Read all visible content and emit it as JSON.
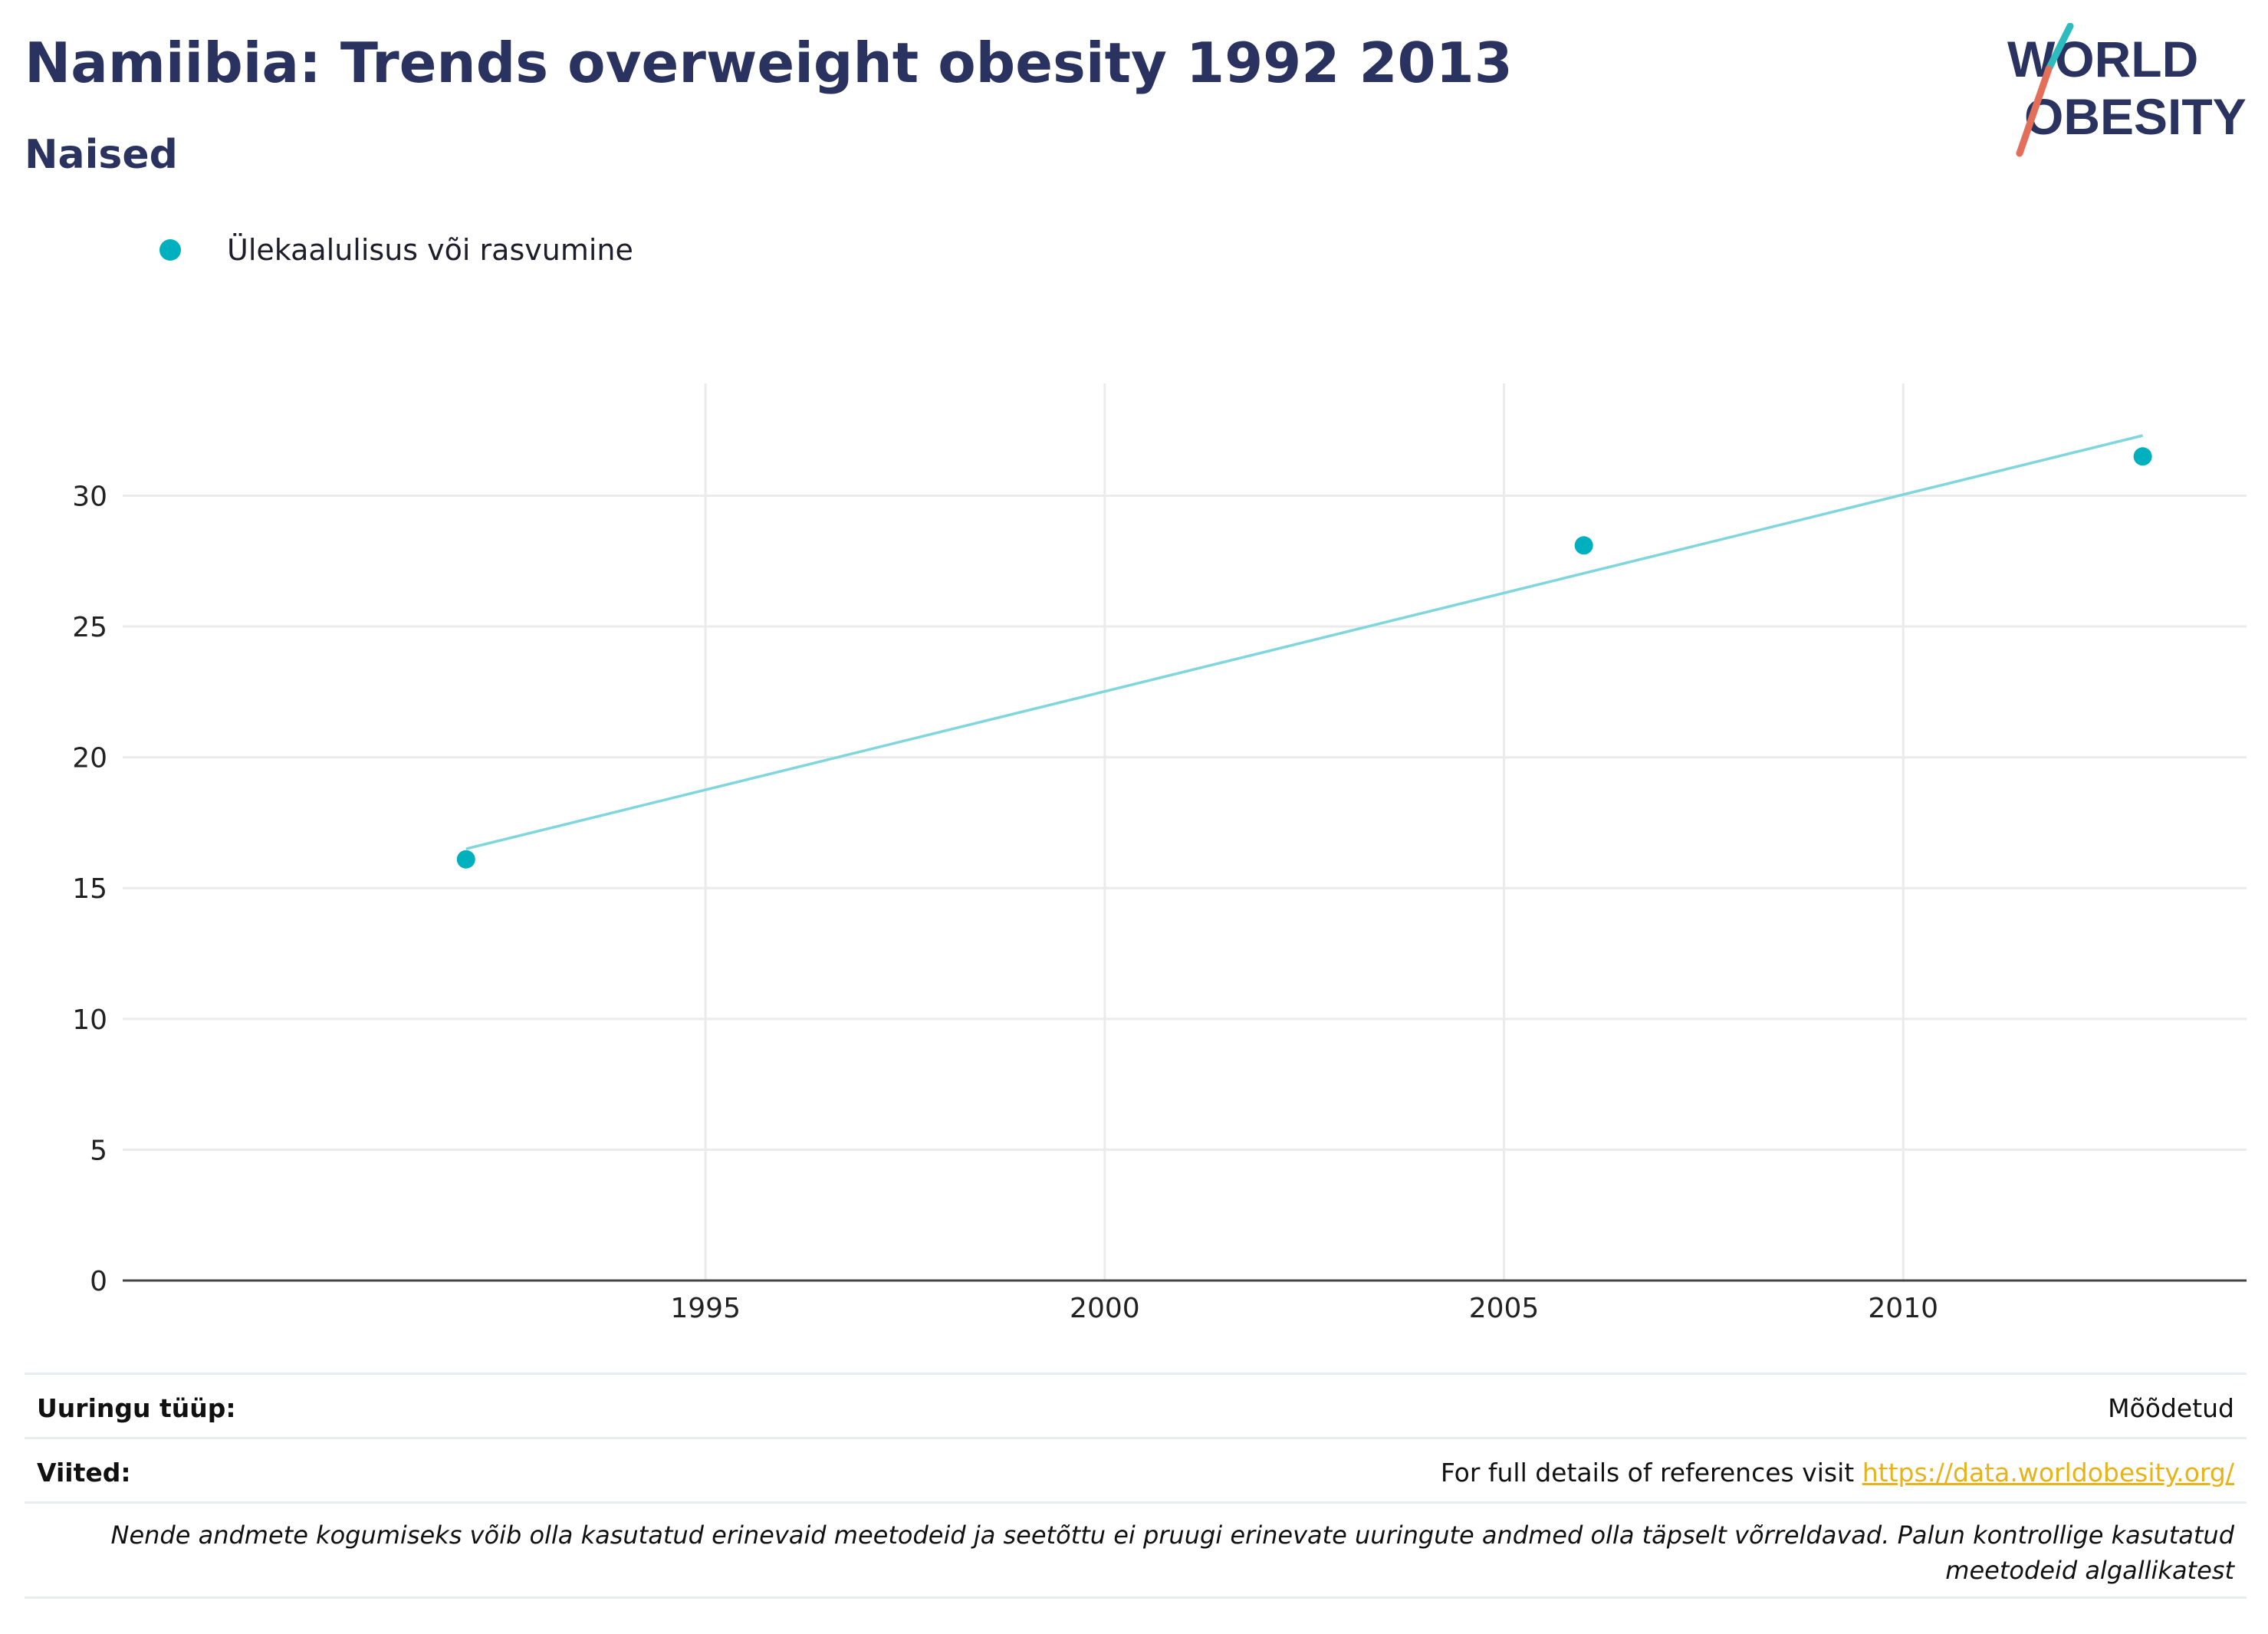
{
  "header": {
    "title": "Namiibia: Trends overweight obesity 1992 2013",
    "subtitle": "Naised"
  },
  "logo": {
    "line1": "WORLD",
    "line2": "OBESITY"
  },
  "legend": {
    "series_label": "Ülekaalulisus või rasvumine"
  },
  "colors": {
    "accent": "#00b0bf",
    "trend": "#7fd6dc",
    "title": "#2a3360",
    "link": "#e6b319",
    "logo_red": "#e36f5a"
  },
  "chart_data": {
    "type": "scatter",
    "series": [
      {
        "name": "Ülekaalulisus või rasvumine",
        "x": [
          1992,
          2006,
          2013
        ],
        "y": [
          16.1,
          28.1,
          31.5
        ]
      }
    ],
    "trendline": {
      "x": [
        1992,
        2013
      ],
      "y": [
        16.5,
        32.3
      ]
    },
    "xlim": [
      1987.7,
      2014.3
    ],
    "ylim": [
      0,
      34
    ],
    "xticks": [
      1995,
      2000,
      2005,
      2010
    ],
    "yticks": [
      0,
      5,
      10,
      15,
      20,
      25,
      30
    ],
    "grid": true,
    "legend_position": "top-left"
  },
  "footer": {
    "survey_type_label": "Uuringu tüüp:",
    "survey_type_value": "Mõõdetud",
    "references_label": "Viited:",
    "references_text": "For full details of references visit ",
    "references_link": "https://data.worldobesity.org/",
    "note": "Nende andmete kogumiseks võib olla kasutatud erinevaid meetodeid ja seetõttu ei pruugi erinevate uuringute andmed olla täpselt võrreldavad. Palun kontrollige kasutatud meetodeid algallikatest"
  }
}
